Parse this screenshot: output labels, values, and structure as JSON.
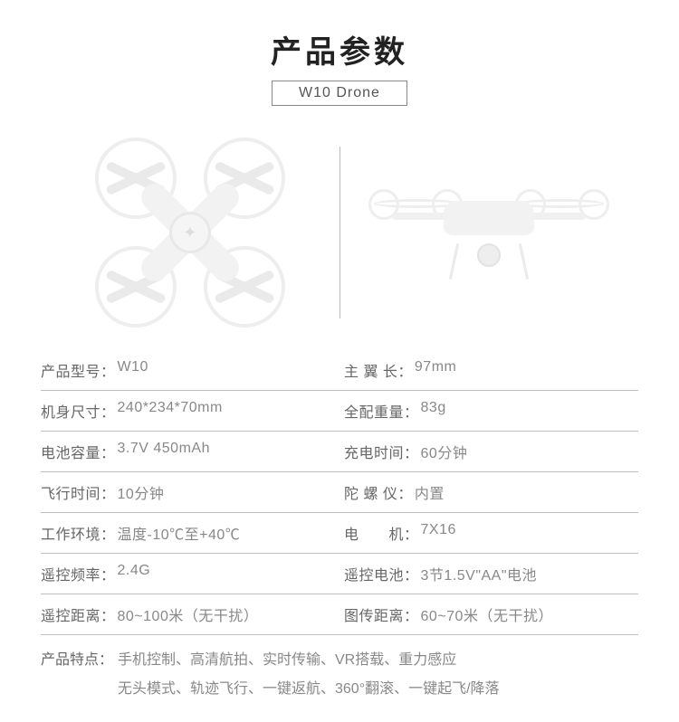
{
  "header": {
    "title": "产品参数",
    "subtitle": "W10 Drone"
  },
  "specs": [
    {
      "left": {
        "key": "产品型号：",
        "val": "W10"
      },
      "right": {
        "key": "主 翼 长：",
        "val": "97mm"
      }
    },
    {
      "left": {
        "key": "机身尺寸：",
        "val": "240*234*70mm"
      },
      "right": {
        "key": "全配重量：",
        "val": "83g"
      }
    },
    {
      "left": {
        "key": "电池容量：",
        "val": "3.7V 450mAh"
      },
      "right": {
        "key": "充电时间：",
        "val": "60分钟"
      }
    },
    {
      "left": {
        "key": "飞行时间：",
        "val": "10分钟"
      },
      "right": {
        "key": "陀 螺 仪：",
        "val": "内置"
      }
    },
    {
      "left": {
        "key": "工作环境：",
        "val": "温度-10℃至+40℃"
      },
      "right": {
        "key": "电　　机：",
        "val": "7X16"
      }
    },
    {
      "left": {
        "key": "遥控频率：",
        "val": "2.4G"
      },
      "right": {
        "key": "遥控电池：",
        "val": "3节1.5V\"AA\"电池"
      }
    },
    {
      "left": {
        "key": "遥控距离：",
        "val": "80~100米（无干扰）"
      },
      "right": {
        "key": "图传距离：",
        "val": "60~70米（无干扰）"
      }
    }
  ],
  "features": {
    "key": "产品特点：",
    "line1": "手机控制、高清航拍、实时传输、VR搭载、重力感应",
    "line2": "无头模式、轨迹飞行、一键返航、360°翻滚、一键起飞/降落"
  },
  "colors": {
    "text": "#666666",
    "value": "#888888",
    "border": "#bfbfbf",
    "background": "#ffffff",
    "title": "#222222",
    "drone_fill": "#f2f2f2",
    "drone_stroke": "#eeeeee"
  }
}
